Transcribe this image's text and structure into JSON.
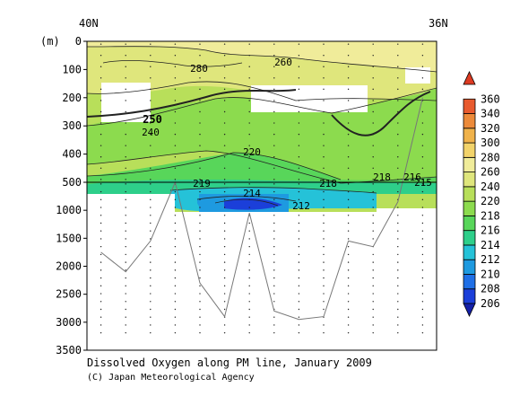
{
  "chart_data": {
    "type": "heatmap",
    "title": "Dissolved Oxygen along PM line, January 2009",
    "credit": "(C) Japan Meteorological Agency",
    "x_top_labels": [
      "40N",
      "36N"
    ],
    "y_unit_label": "(m)",
    "y_upper_ticks": [
      0,
      100,
      200,
      300,
      400,
      500
    ],
    "y_lower_ticks": [
      1000,
      1500,
      2000,
      2500,
      3000,
      3500
    ],
    "ylim_upper": [
      0,
      500
    ],
    "ylim_lower": [
      500,
      3500
    ],
    "colorbar": {
      "levels": [
        206,
        208,
        210,
        212,
        214,
        216,
        218,
        220,
        240,
        260,
        280,
        300,
        320,
        340,
        360
      ],
      "colors": [
        "#1420a8",
        "#1b3fd9",
        "#1f6fe6",
        "#1e9ae0",
        "#25c2d8",
        "#2ecf8a",
        "#58d65a",
        "#8cdb4e",
        "#b8df5a",
        "#dfe67c",
        "#f0ec9a",
        "#f2d36a",
        "#f0b24a",
        "#ec8a3a",
        "#e85a2e",
        "#dd3b22"
      ]
    },
    "contour_labels": [
      "280",
      "260",
      "250",
      "240",
      "220",
      "219",
      "218",
      "218",
      "216",
      "215",
      "214",
      "212"
    ],
    "station_count": 14,
    "bottom_depth_m": [
      1750,
      2100,
      1550,
      500,
      2300,
      2900,
      1050,
      2800,
      2950,
      2900,
      1550,
      1650,
      850,
      200
    ]
  }
}
